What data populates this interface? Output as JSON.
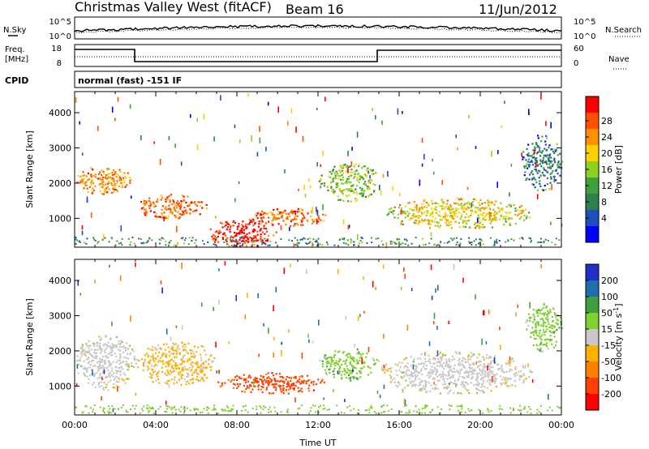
{
  "title": "Christmas Valley West (fitACF)",
  "beam": "Beam 16",
  "date": "11/Jun/2012",
  "top_panels": {
    "nsky_label": "N.Sky",
    "nsearch_label": "N.Search",
    "freq_label_1": "Freq.",
    "freq_label_2": "[MHz]",
    "nave_label": "Nave",
    "cpid_label": "CPID",
    "cpid_value": "normal (fast) -151 IF",
    "noise_left_ticks": [
      "10^5",
      "10^0"
    ],
    "noise_right_ticks": [
      "10^5",
      "10^0"
    ],
    "freq_left_ticks": [
      "18",
      "8"
    ],
    "freq_right_ticks": [
      "60",
      "0"
    ]
  },
  "colors": {
    "power": [
      "#0000ff",
      "#1f4fbf",
      "#2f7f4f",
      "#3fa03f",
      "#90d020",
      "#ffd000",
      "#ff9000",
      "#ff5000",
      "#ff0000"
    ],
    "velocity": [
      "#1f2fc8",
      "#1f6fb0",
      "#3f9f3f",
      "#80d030",
      "#c8c8c8",
      "#ffb000",
      "#ff7f00",
      "#ff4000",
      "#ff0000"
    ]
  },
  "chart_data": [
    {
      "type": "heatmap",
      "panel": "power",
      "xlabel": "",
      "ylabel": "Slant Range [km]",
      "xlim": [
        "00:00",
        "24:00"
      ],
      "ylim": [
        180,
        4600
      ],
      "y_ticks": [
        "1000",
        "2000",
        "3000",
        "4000"
      ],
      "colorbar": {
        "label": "Power [dB]",
        "ticks": [
          "4",
          "8",
          "12",
          "16",
          "20",
          "24",
          "28"
        ],
        "range": [
          0,
          30
        ]
      },
      "echo_regions": [
        {
          "t": [
            0.0,
            2.8
          ],
          "r": [
            1700,
            2500
          ],
          "value": 22
        },
        {
          "t": [
            3.0,
            6.5
          ],
          "r": [
            1000,
            1700
          ],
          "value": 24
        },
        {
          "t": [
            6.5,
            10.0
          ],
          "r": [
            200,
            1000
          ],
          "value": 28
        },
        {
          "t": [
            8.5,
            12.5
          ],
          "r": [
            800,
            1300
          ],
          "value": 24
        },
        {
          "t": [
            12.0,
            15.0
          ],
          "r": [
            1500,
            2600
          ],
          "value": 14
        },
        {
          "t": [
            15.2,
            22.5
          ],
          "r": [
            700,
            1600
          ],
          "value": 18
        },
        {
          "t": [
            22.0,
            24.0
          ],
          "r": [
            1800,
            3400
          ],
          "value": 8
        }
      ]
    },
    {
      "type": "heatmap",
      "panel": "velocity",
      "xlabel": "Time UT",
      "ylabel": "Slant Range [km]",
      "xlim": [
        "00:00",
        "24:00"
      ],
      "ylim": [
        180,
        4600
      ],
      "x_ticks": [
        "00:00",
        "04:00",
        "08:00",
        "12:00",
        "16:00",
        "20:00",
        "00:00"
      ],
      "y_ticks": [
        "1000",
        "2000",
        "3000",
        "4000"
      ],
      "colorbar": {
        "label_main": "Velocity [m s",
        "label_sup": "-1",
        "label_end": "]",
        "ticks": [
          "200",
          "100",
          "50",
          "15",
          "-15",
          "-50",
          "-100",
          "-200"
        ],
        "range": [
          -250,
          250
        ]
      },
      "echo_regions": [
        {
          "t": [
            0.0,
            3.0
          ],
          "r": [
            900,
            2500
          ],
          "value": 0
        },
        {
          "t": [
            3.0,
            7.0
          ],
          "r": [
            1000,
            2300
          ],
          "value": -40
        },
        {
          "t": [
            7.0,
            12.5
          ],
          "r": [
            800,
            1400
          ],
          "value": -160
        },
        {
          "t": [
            12.0,
            15.0
          ],
          "r": [
            1200,
            2100
          ],
          "value": 60
        },
        {
          "t": [
            15.0,
            22.5
          ],
          "r": [
            800,
            2000
          ],
          "value": 0
        },
        {
          "t": [
            22.2,
            24.0
          ],
          "r": [
            2000,
            3400
          ],
          "value": 60
        }
      ]
    }
  ]
}
